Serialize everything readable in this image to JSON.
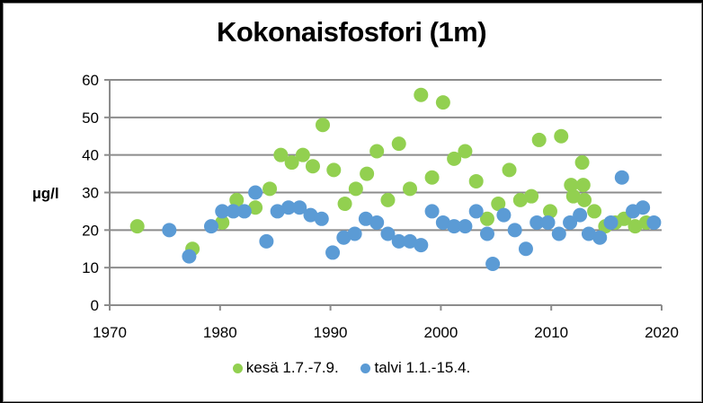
{
  "chart_data": {
    "type": "scatter",
    "title": "Kokonaisfosfori (1m)",
    "xlabel": "",
    "ylabel": "µg/l",
    "xlim": [
      1970,
      2020
    ],
    "ylim": [
      0,
      60
    ],
    "xticks": [
      1970,
      1980,
      1990,
      2000,
      2010,
      2020
    ],
    "yticks": [
      0,
      10,
      20,
      30,
      40,
      50,
      60
    ],
    "grid": "horizontal",
    "legend_position": "bottom",
    "series": [
      {
        "name": "kesä 1.7.-7.9.",
        "color": "#92D050",
        "points": [
          [
            1972.5,
            21
          ],
          [
            1977.5,
            15
          ],
          [
            1980.2,
            22
          ],
          [
            1981.5,
            28
          ],
          [
            1983.2,
            26
          ],
          [
            1984.5,
            31
          ],
          [
            1985.5,
            40
          ],
          [
            1986.5,
            38
          ],
          [
            1987.5,
            40
          ],
          [
            1988.4,
            37
          ],
          [
            1989.3,
            48
          ],
          [
            1990.3,
            36
          ],
          [
            1991.3,
            27
          ],
          [
            1992.3,
            31
          ],
          [
            1993.3,
            35
          ],
          [
            1994.2,
            41
          ],
          [
            1995.2,
            28
          ],
          [
            1996.2,
            43
          ],
          [
            1997.2,
            31
          ],
          [
            1998.2,
            56
          ],
          [
            1999.2,
            34
          ],
          [
            2000.2,
            54
          ],
          [
            2001.2,
            39
          ],
          [
            2002.2,
            41
          ],
          [
            2003.2,
            33
          ],
          [
            2004.2,
            23
          ],
          [
            2005.2,
            27
          ],
          [
            2006.2,
            36
          ],
          [
            2007.2,
            28
          ],
          [
            2008.2,
            29
          ],
          [
            2008.9,
            44
          ],
          [
            2009.9,
            25
          ],
          [
            2010.9,
            45
          ],
          [
            2011.8,
            32
          ],
          [
            2012.0,
            29
          ],
          [
            2012.8,
            38
          ],
          [
            2012.9,
            32
          ],
          [
            2013.0,
            28
          ],
          [
            2013.9,
            25
          ],
          [
            2014.9,
            21
          ],
          [
            2015.8,
            22
          ],
          [
            2016.6,
            23
          ],
          [
            2017.6,
            21
          ],
          [
            2018.6,
            22
          ]
        ]
      },
      {
        "name": "talvi 1.1.-15.4.",
        "color": "#5B9BD5",
        "points": [
          [
            1975.4,
            20
          ],
          [
            1977.2,
            13
          ],
          [
            1979.2,
            21
          ],
          [
            1980.2,
            25
          ],
          [
            1981.2,
            25
          ],
          [
            1982.2,
            25
          ],
          [
            1983.2,
            30
          ],
          [
            1984.2,
            17
          ],
          [
            1985.2,
            25
          ],
          [
            1986.2,
            26
          ],
          [
            1987.2,
            26
          ],
          [
            1988.2,
            24
          ],
          [
            1989.2,
            23
          ],
          [
            1990.2,
            14
          ],
          [
            1991.2,
            18
          ],
          [
            1992.2,
            19
          ],
          [
            1993.2,
            23
          ],
          [
            1994.2,
            22
          ],
          [
            1995.2,
            19
          ],
          [
            1996.2,
            17
          ],
          [
            1997.2,
            17
          ],
          [
            1998.2,
            16
          ],
          [
            1999.2,
            25
          ],
          [
            2000.2,
            22
          ],
          [
            2001.2,
            21
          ],
          [
            2002.2,
            21
          ],
          [
            2003.2,
            25
          ],
          [
            2004.2,
            19
          ],
          [
            2004.7,
            11
          ],
          [
            2005.7,
            24
          ],
          [
            2006.7,
            20
          ],
          [
            2007.7,
            15
          ],
          [
            2008.7,
            22
          ],
          [
            2009.7,
            22
          ],
          [
            2010.7,
            19
          ],
          [
            2011.7,
            22
          ],
          [
            2012.6,
            24
          ],
          [
            2013.4,
            19
          ],
          [
            2014.4,
            18
          ],
          [
            2015.4,
            22
          ],
          [
            2016.4,
            34
          ],
          [
            2017.4,
            25
          ],
          [
            2018.3,
            26
          ],
          [
            2019.3,
            22
          ]
        ]
      }
    ]
  },
  "legend": {
    "items": [
      {
        "label": "kesä 1.7.-7.9.",
        "color": "#92D050"
      },
      {
        "label": "talvi 1.1.-15.4.",
        "color": "#5B9BD5"
      }
    ]
  }
}
